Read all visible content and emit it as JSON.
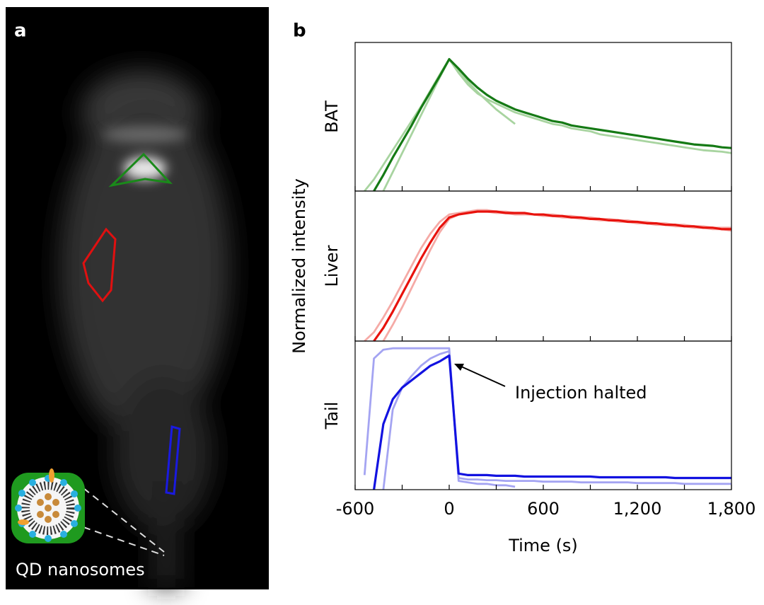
{
  "panel_labels": [
    "a",
    "b"
  ],
  "image_caption": "QD nanosomes",
  "ylabel": "Normalized intensity",
  "xlabel": "Time (s)",
  "annotation": "Injection halted",
  "chart_data": [
    {
      "type": "line",
      "ylabel": "BAT",
      "x": [
        -600,
        -540,
        -480,
        -420,
        -360,
        -300,
        -240,
        -180,
        -120,
        -60,
        0,
        60,
        120,
        180,
        240,
        300,
        360,
        420,
        480,
        540,
        600,
        660,
        720,
        780,
        840,
        900,
        960,
        1020,
        1080,
        1140,
        1200,
        1260,
        1320,
        1380,
        1440,
        1500,
        1560,
        1620,
        1680,
        1740,
        1800
      ],
      "xlim": [
        -600,
        1800
      ],
      "ylim": [
        0,
        1
      ],
      "series": [
        {
          "color": "#a8d4a0",
          "values": [
            null,
            0,
            0.08,
            0.18,
            0.28,
            0.38,
            0.48,
            0.58,
            0.69,
            0.8,
            0.905,
            0.83,
            0.75,
            0.68,
            0.62,
            0.56,
            0.51,
            0.46,
            null,
            null,
            null,
            null,
            null,
            null,
            null,
            null,
            null,
            null,
            null,
            null,
            null,
            null,
            null,
            null,
            null,
            null,
            null,
            null,
            null,
            null,
            null
          ]
        },
        {
          "color": "#a8d4a0",
          "values": [
            null,
            null,
            null,
            0,
            0.13,
            0.26,
            0.39,
            0.52,
            0.65,
            0.78,
            0.905,
            0.81,
            0.73,
            0.67,
            0.63,
            0.6,
            0.57,
            0.54,
            0.52,
            0.5,
            0.48,
            0.46,
            0.45,
            0.43,
            0.42,
            0.41,
            0.39,
            0.38,
            0.37,
            0.36,
            0.35,
            0.34,
            0.33,
            0.32,
            0.31,
            0.3,
            0.29,
            0.28,
            0.275,
            0.27,
            0.26
          ]
        },
        {
          "color": "#157a15",
          "values": [
            null,
            null,
            0,
            0.11,
            0.23,
            0.34,
            0.45,
            0.57,
            0.68,
            0.79,
            0.905,
            0.84,
            0.77,
            0.71,
            0.66,
            0.62,
            0.59,
            0.56,
            0.54,
            0.52,
            0.5,
            0.48,
            0.47,
            0.45,
            0.44,
            0.43,
            0.42,
            0.41,
            0.4,
            0.39,
            0.38,
            0.37,
            0.36,
            0.35,
            0.34,
            0.33,
            0.32,
            0.315,
            0.31,
            0.3,
            0.295
          ]
        }
      ]
    },
    {
      "type": "line",
      "ylabel": "Liver",
      "x": [
        -600,
        -540,
        -480,
        -420,
        -360,
        -300,
        -240,
        -180,
        -120,
        -60,
        0,
        60,
        120,
        180,
        240,
        300,
        360,
        420,
        480,
        540,
        600,
        660,
        720,
        780,
        840,
        900,
        960,
        1020,
        1080,
        1140,
        1200,
        1260,
        1320,
        1380,
        1440,
        1500,
        1560,
        1620,
        1680,
        1740,
        1800
      ],
      "xlim": [
        -600,
        1800
      ],
      "ylim": [
        0,
        1
      ],
      "series": [
        {
          "color": "#f5aaa6",
          "values": [
            null,
            0,
            0.06,
            0.16,
            0.27,
            0.39,
            0.51,
            0.63,
            0.73,
            0.81,
            0.86,
            0.87,
            0.88,
            0.89,
            0.89,
            0.88,
            0.88,
            0.87,
            0.87,
            0.86,
            0.86,
            0.86,
            0.85,
            0.85,
            0.84,
            0.84,
            0.83,
            0.83,
            0.82,
            0.82,
            0.81,
            0.81,
            0.8,
            0.8,
            0.79,
            0.79,
            0.78,
            0.78,
            0.77,
            0.77,
            0.77
          ]
        },
        {
          "color": "#f5aaa6",
          "values": [
            null,
            null,
            null,
            0,
            0.11,
            0.23,
            0.36,
            0.49,
            0.62,
            0.74,
            0.83,
            0.86,
            0.87,
            0.88,
            0.88,
            0.87,
            0.87,
            0.86,
            0.86,
            0.86,
            0.85,
            0.85,
            0.84,
            0.84,
            0.83,
            0.83,
            0.82,
            0.82,
            0.81,
            0.81,
            0.8,
            0.8,
            0.79,
            0.79,
            0.78,
            0.78,
            0.77,
            0.77,
            0.76,
            0.76,
            0.75
          ]
        },
        {
          "color": "#e8120c",
          "values": [
            null,
            null,
            0,
            0.09,
            0.2,
            0.32,
            0.44,
            0.56,
            0.67,
            0.77,
            0.84,
            0.86,
            0.87,
            0.88,
            0.88,
            0.88,
            0.87,
            0.87,
            0.87,
            0.86,
            0.86,
            0.85,
            0.85,
            0.84,
            0.84,
            0.83,
            0.83,
            0.82,
            0.82,
            0.81,
            0.81,
            0.8,
            0.8,
            0.79,
            0.79,
            0.78,
            0.78,
            0.77,
            0.77,
            0.76,
            0.76
          ]
        }
      ]
    },
    {
      "type": "line",
      "ylabel": "Tail",
      "x": [
        -600,
        -540,
        -480,
        -420,
        -360,
        -300,
        -240,
        -180,
        -120,
        -60,
        0,
        60,
        120,
        180,
        240,
        300,
        360,
        420,
        480,
        540,
        600,
        660,
        720,
        780,
        840,
        900,
        960,
        1020,
        1080,
        1140,
        1200,
        1260,
        1320,
        1380,
        1440,
        1500,
        1560,
        1620,
        1680,
        1740,
        1800
      ],
      "xlim": [
        -600,
        1800
      ],
      "ylim": [
        0,
        1
      ],
      "xticks": [
        -600,
        0,
        600,
        {
          "value": 1200,
          "label": "1,200"
        },
        {
          "value": 1800,
          "label": "1,800"
        }
      ],
      "xminor": [
        -300,
        300,
        900,
        1500
      ],
      "series": [
        {
          "color": "#a4a4f2",
          "values": [
            null,
            0.1,
            0.9,
            0.96,
            0.97,
            0.97,
            0.97,
            0.97,
            0.97,
            0.97,
            0.97,
            0.06,
            0.05,
            0.04,
            0.04,
            0.03,
            0.03,
            0.02,
            null,
            null,
            null,
            null,
            null,
            null,
            null,
            null,
            null,
            null,
            null,
            null,
            null,
            null,
            null,
            null,
            null,
            null,
            null,
            null,
            null,
            null,
            null
          ]
        },
        {
          "color": "#a4a4f2",
          "values": [
            null,
            null,
            null,
            0,
            0.55,
            0.7,
            0.78,
            0.85,
            0.9,
            0.93,
            0.95,
            0.08,
            0.07,
            0.07,
            0.065,
            0.065,
            0.06,
            0.06,
            0.06,
            0.06,
            0.055,
            0.055,
            0.055,
            0.055,
            0.05,
            0.05,
            0.05,
            0.05,
            0.05,
            0.05,
            0.045,
            0.045,
            0.045,
            0.045,
            0.045,
            0.04,
            0.04,
            0.04,
            0.04,
            0.04,
            0.04
          ]
        },
        {
          "color": "#1212e0",
          "values": [
            null,
            null,
            0,
            0.45,
            0.62,
            0.7,
            0.75,
            0.8,
            0.85,
            0.88,
            0.92,
            0.11,
            0.1,
            0.1,
            0.1,
            0.095,
            0.095,
            0.095,
            0.09,
            0.09,
            0.09,
            0.09,
            0.09,
            0.09,
            0.09,
            0.09,
            0.085,
            0.085,
            0.085,
            0.085,
            0.085,
            0.085,
            0.085,
            0.085,
            0.08,
            0.08,
            0.08,
            0.08,
            0.08,
            0.08,
            0.08
          ]
        }
      ]
    }
  ]
}
